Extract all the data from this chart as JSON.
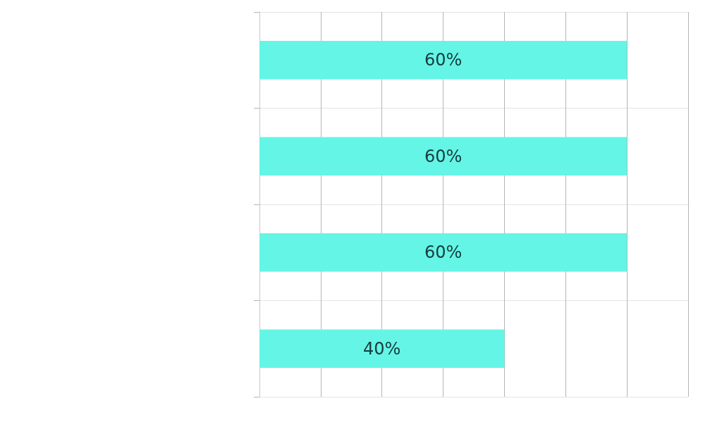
{
  "chart_data": {
    "type": "bar",
    "orientation": "horizontal",
    "categories": [
      null,
      null,
      null,
      null
    ],
    "values": [
      60,
      60,
      60,
      40
    ],
    "value_labels": [
      "60%",
      "60%",
      "60%",
      "40%"
    ],
    "color": "#64f5e6",
    "xlim": [
      0,
      70
    ],
    "xticks": [
      {
        "value": 0,
        "label": null
      },
      {
        "value": 10,
        "label": null
      },
      {
        "value": 20,
        "label": null
      },
      {
        "value": 30,
        "label": null
      },
      {
        "value": 40,
        "label": null
      },
      {
        "value": 50,
        "label": null
      },
      {
        "value": 60,
        "label": null
      },
      {
        "value": 70,
        "label": null
      }
    ],
    "grid": true
  }
}
